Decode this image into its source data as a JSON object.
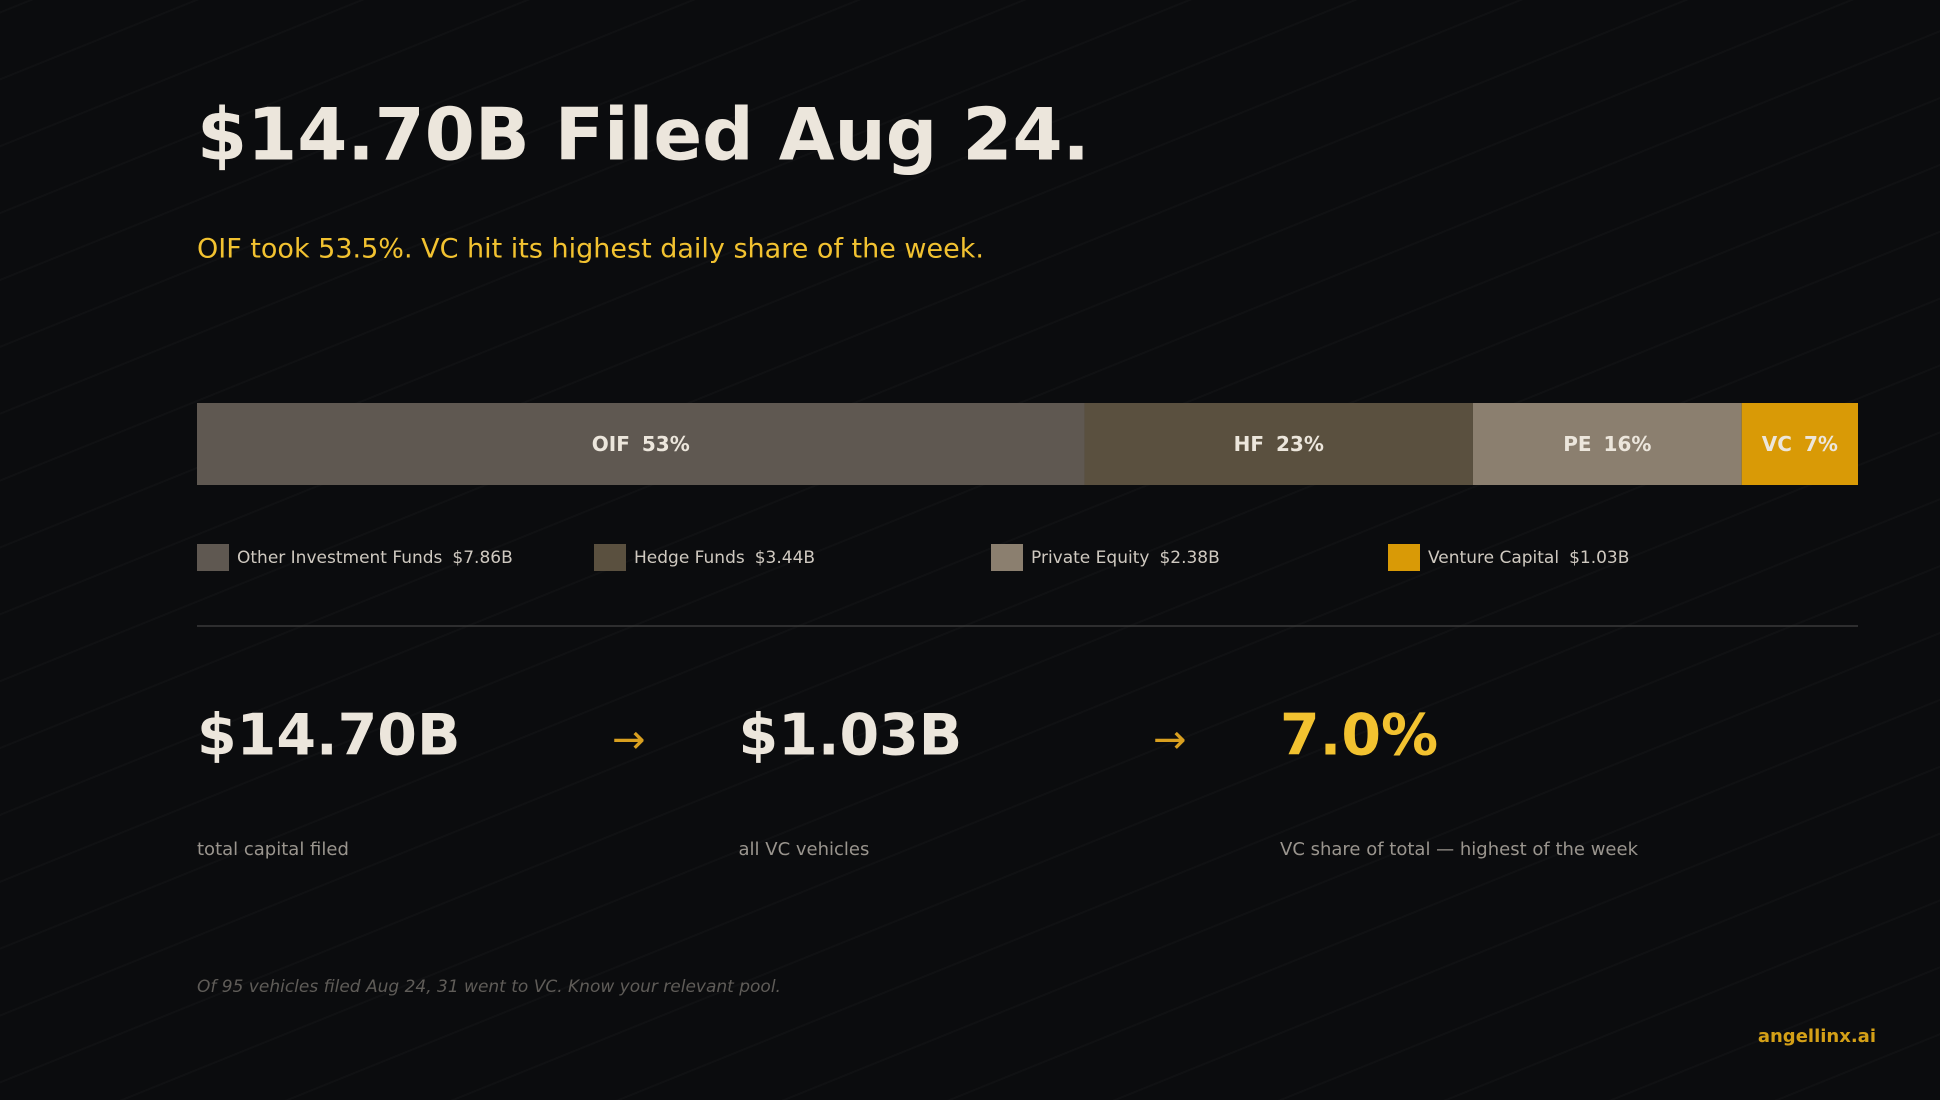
{
  "chart_data": {
    "type": "stacked-bar",
    "title": "$14.70B Filed Aug 24.",
    "subtitle": "OIF took 53.5%. VC hit its highest daily share of the week.",
    "segments": [
      {
        "name": "Other Investment Funds",
        "abbr": "OIF",
        "value": 7.86,
        "value_label": "$7.86B",
        "share": 53,
        "share_label": "53%",
        "color": "#5f5851"
      },
      {
        "name": "Hedge Funds",
        "abbr": "HF",
        "value": 3.44,
        "value_label": "$3.44B",
        "share": 23,
        "share_label": "23%",
        "color": "#5a503f"
      },
      {
        "name": "Private Equity",
        "abbr": "PE",
        "value": 2.38,
        "value_label": "$2.38B",
        "share": 16,
        "share_label": "16%",
        "color": "#8b7f6f"
      },
      {
        "name": "Venture Capital",
        "abbr": "VC",
        "value": 1.03,
        "value_label": "$1.03B",
        "share": 7,
        "share_label": "7%",
        "color": "#d99a06"
      }
    ]
  },
  "stats": [
    {
      "value": "$14.70B",
      "caption": "total capital filed"
    },
    {
      "value": "$1.03B",
      "caption": "all VC vehicles"
    },
    {
      "value": "7.0%",
      "caption": "VC share of total — highest of the week"
    }
  ],
  "arrow": "→",
  "footnote": "Of 95 vehicles filed Aug 24, 31 went to VC. Know your relevant pool.",
  "brand": "angellinx.ai"
}
